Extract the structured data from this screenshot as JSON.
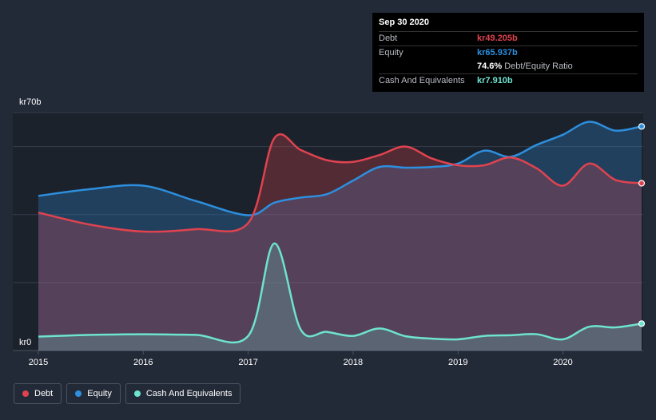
{
  "chart_data": {
    "type": "area",
    "title": "",
    "currency_axis": {
      "top_label": "kr70b",
      "bottom_label": "kr0"
    },
    "ylim": [
      0,
      70
    ],
    "xlim": [
      2015,
      2020.75
    ],
    "x_ticks": [
      "2015",
      "2016",
      "2017",
      "2018",
      "2019",
      "2020"
    ],
    "series": [
      {
        "name": "Debt",
        "color": "#e0434f",
        "points": [
          [
            2015.0,
            40.6
          ],
          [
            2015.5,
            37.0
          ],
          [
            2016.0,
            35.0
          ],
          [
            2016.5,
            35.7
          ],
          [
            2017.0,
            37.5
          ],
          [
            2017.25,
            62.5
          ],
          [
            2017.5,
            59.0
          ],
          [
            2017.75,
            56.0
          ],
          [
            2018.0,
            55.5
          ],
          [
            2018.25,
            57.5
          ],
          [
            2018.5,
            60.0
          ],
          [
            2018.75,
            56.5
          ],
          [
            2019.0,
            54.5
          ],
          [
            2019.25,
            54.5
          ],
          [
            2019.5,
            56.8
          ],
          [
            2019.75,
            53.6
          ],
          [
            2020.0,
            48.5
          ],
          [
            2020.25,
            55.0
          ],
          [
            2020.5,
            50.2
          ],
          [
            2020.75,
            49.205
          ]
        ]
      },
      {
        "name": "Equity",
        "color": "#2d8fde",
        "points": [
          [
            2015.0,
            45.5
          ],
          [
            2015.5,
            47.5
          ],
          [
            2016.0,
            48.5
          ],
          [
            2016.5,
            44.0
          ],
          [
            2017.0,
            39.8
          ],
          [
            2017.25,
            43.5
          ],
          [
            2017.5,
            45.0
          ],
          [
            2017.75,
            46.0
          ],
          [
            2018.0,
            50.0
          ],
          [
            2018.25,
            54.0
          ],
          [
            2018.5,
            53.8
          ],
          [
            2018.75,
            54.0
          ],
          [
            2019.0,
            55.0
          ],
          [
            2019.25,
            58.8
          ],
          [
            2019.5,
            57.0
          ],
          [
            2019.75,
            60.5
          ],
          [
            2020.0,
            63.5
          ],
          [
            2020.25,
            67.3
          ],
          [
            2020.5,
            64.7
          ],
          [
            2020.75,
            65.937
          ]
        ]
      },
      {
        "name": "Cash And Equivalents",
        "color": "#6ee3d0",
        "points": [
          [
            2015.0,
            4.1
          ],
          [
            2015.5,
            4.6
          ],
          [
            2016.0,
            4.8
          ],
          [
            2016.5,
            4.6
          ],
          [
            2017.0,
            4.3
          ],
          [
            2017.25,
            31.5
          ],
          [
            2017.5,
            6.2
          ],
          [
            2017.75,
            5.5
          ],
          [
            2018.0,
            4.3
          ],
          [
            2018.25,
            6.5
          ],
          [
            2018.5,
            4.2
          ],
          [
            2018.75,
            3.5
          ],
          [
            2019.0,
            3.3
          ],
          [
            2019.25,
            4.3
          ],
          [
            2019.5,
            4.5
          ],
          [
            2019.75,
            4.8
          ],
          [
            2020.0,
            3.3
          ],
          [
            2020.25,
            7.0
          ],
          [
            2020.5,
            6.8
          ],
          [
            2020.75,
            7.91
          ]
        ]
      }
    ]
  },
  "tooltip": {
    "date": "Sep 30 2020",
    "debt_label": "Debt",
    "debt_value": "kr49.205b",
    "equity_label": "Equity",
    "equity_value": "kr65.937b",
    "ratio_value": "74.6%",
    "ratio_label": "Debt/Equity Ratio",
    "cash_label": "Cash And Equivalents",
    "cash_value": "kr7.910b"
  },
  "legend": [
    {
      "label": "Debt",
      "color": "#e0434f"
    },
    {
      "label": "Equity",
      "color": "#2d8fde"
    },
    {
      "label": "Cash And Equivalents",
      "color": "#6ee3d0"
    }
  ]
}
